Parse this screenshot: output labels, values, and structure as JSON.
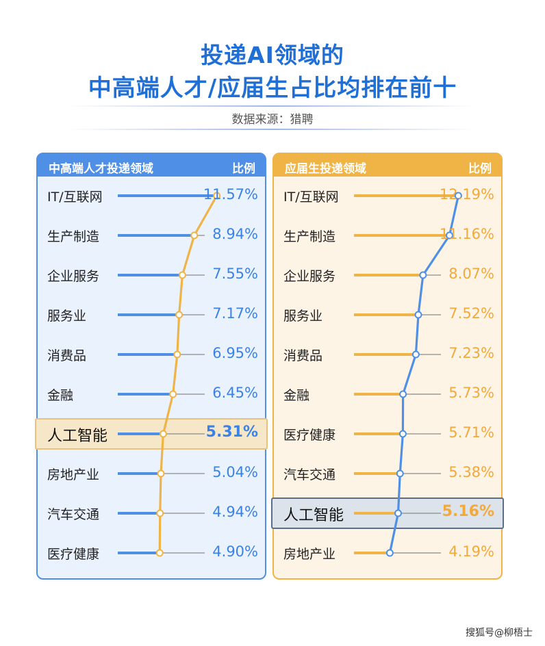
{
  "title": {
    "line1": "投递AI领域的",
    "line2": "中高端人才/应届生占比均排在前十"
  },
  "source": "数据来源：猎聘",
  "footer": "搜狐号@柳梧士",
  "colors": {
    "blue": "#4f8fe6",
    "orange": "#f0b446"
  },
  "chart_data": [
    {
      "type": "line",
      "header": {
        "category": "中高端人才投递领域",
        "ratio": "比例"
      },
      "categories": [
        "IT/互联网",
        "生产制造",
        "企业服务",
        "服务业",
        "消费品",
        "金融",
        "人工智能",
        "房地产业",
        "汽车交通",
        "医疗健康"
      ],
      "values": [
        11.57,
        8.94,
        7.55,
        7.17,
        6.95,
        6.45,
        5.31,
        5.04,
        4.94,
        4.9
      ],
      "labels": [
        "11.57%",
        "8.94%",
        "7.55%",
        "7.17%",
        "6.95%",
        "6.45%",
        "5.31%",
        "5.04%",
        "4.94%",
        "4.90%"
      ],
      "highlight": "人工智能"
    },
    {
      "type": "line",
      "header": {
        "category": "应届生投递领域",
        "ratio": "比例"
      },
      "categories": [
        "IT/互联网",
        "生产制造",
        "企业服务",
        "服务业",
        "消费品",
        "金融",
        "医疗健康",
        "汽车交通",
        "人工智能",
        "房地产业"
      ],
      "values": [
        12.19,
        11.16,
        8.07,
        7.52,
        7.23,
        5.73,
        5.71,
        5.38,
        5.16,
        4.19
      ],
      "labels": [
        "12.19%",
        "11.16%",
        "8.07%",
        "7.52%",
        "7.23%",
        "5.73%",
        "5.71%",
        "5.38%",
        "5.16%",
        "4.19%"
      ],
      "highlight": "人工智能"
    }
  ]
}
